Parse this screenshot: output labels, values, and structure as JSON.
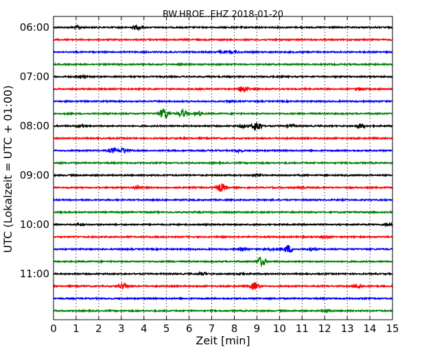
{
  "chart_data": {
    "type": "line",
    "title": "BW.HROE..EHZ 2018-01-20",
    "xlabel": "Zeit  [min]",
    "ylabel": "UTC (Lokalzeit = UTC + 01:00)",
    "xlim": [
      0,
      15
    ],
    "x_ticks": [
      "0",
      "1",
      "2",
      "3",
      "4",
      "5",
      "6",
      "7",
      "8",
      "9",
      "10",
      "11",
      "12",
      "13",
      "14",
      "15"
    ],
    "y_ticks": [
      "06:00",
      "07:00",
      "08:00",
      "09:00",
      "10:00",
      "11:00"
    ],
    "grid": "vertical dotted lines at each minute",
    "trace_colors": [
      "#000000",
      "#ff0000",
      "#0000ff",
      "#008000"
    ],
    "traces": [
      {
        "start": "06:00",
        "events": [
          [
            1.1,
            0.5
          ],
          [
            3.7,
            0.8
          ]
        ]
      },
      {
        "start": "06:15",
        "events": []
      },
      {
        "start": "06:30",
        "events": [
          [
            7.5,
            0.4
          ],
          [
            8.0,
            0.4
          ]
        ]
      },
      {
        "start": "06:45",
        "events": []
      },
      {
        "start": "07:00",
        "events": [
          [
            1.2,
            0.4
          ]
        ]
      },
      {
        "start": "07:15",
        "events": [
          [
            8.4,
            1.8
          ],
          [
            13.6,
            0.6
          ]
        ]
      },
      {
        "start": "07:30",
        "events": [
          [
            7.8,
            0.4
          ]
        ]
      },
      {
        "start": "07:45",
        "events": [
          [
            4.9,
            2.6
          ],
          [
            5.7,
            1.5
          ],
          [
            6.4,
            0.8
          ]
        ]
      },
      {
        "start": "08:00",
        "events": [
          [
            1.2,
            0.5
          ],
          [
            8.4,
            0.6
          ],
          [
            9.0,
            2.2
          ],
          [
            10.5,
            0.6
          ],
          [
            13.6,
            1.0
          ]
        ]
      },
      {
        "start": "08:15",
        "events": []
      },
      {
        "start": "08:30",
        "events": [
          [
            2.6,
            1.0
          ],
          [
            3.1,
            1.2
          ],
          [
            8.2,
            0.5
          ]
        ]
      },
      {
        "start": "08:45",
        "events": []
      },
      {
        "start": "09:00",
        "events": [
          [
            9.0,
            0.4
          ]
        ]
      },
      {
        "start": "09:15",
        "events": [
          [
            3.7,
            0.6
          ],
          [
            7.4,
            1.6
          ],
          [
            11.0,
            0.5
          ]
        ]
      },
      {
        "start": "09:30",
        "events": []
      },
      {
        "start": "09:45",
        "events": []
      },
      {
        "start": "10:00",
        "events": [
          [
            1.2,
            0.4
          ],
          [
            14.8,
            0.4
          ]
        ]
      },
      {
        "start": "10:15",
        "events": [
          [
            12.0,
            0.5
          ]
        ]
      },
      {
        "start": "10:30",
        "events": [
          [
            8.4,
            0.5
          ],
          [
            9.5,
            0.6
          ],
          [
            10.4,
            1.7
          ],
          [
            11.4,
            0.5
          ]
        ]
      },
      {
        "start": "10:45",
        "events": [
          [
            9.2,
            2.0
          ]
        ]
      },
      {
        "start": "11:00",
        "events": [
          [
            6.6,
            0.5
          ],
          [
            8.3,
            0.5
          ]
        ]
      },
      {
        "start": "11:15",
        "events": [
          [
            3.1,
            1.2
          ],
          [
            8.9,
            1.6
          ],
          [
            13.5,
            0.8
          ]
        ]
      },
      {
        "start": "11:30",
        "events": []
      },
      {
        "start": "11:45",
        "events": [
          [
            12.1,
            0.4
          ]
        ]
      }
    ]
  }
}
